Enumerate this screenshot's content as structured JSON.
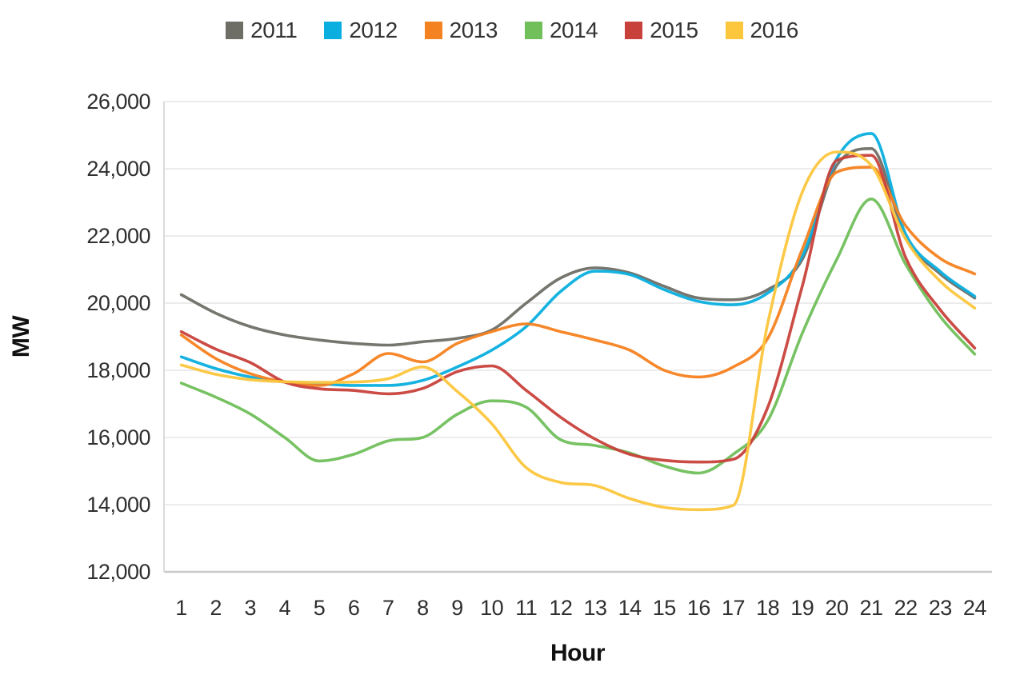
{
  "page": {
    "background": "#ffffff"
  },
  "chart_data": {
    "type": "line",
    "title": "",
    "xlabel": "Hour",
    "ylabel": "MW",
    "x": [
      1,
      2,
      3,
      4,
      5,
      6,
      7,
      8,
      9,
      10,
      11,
      12,
      13,
      14,
      15,
      16,
      17,
      18,
      19,
      20,
      21,
      22,
      23,
      24
    ],
    "ylim": [
      12000,
      26000
    ],
    "y_ticks": [
      12000,
      14000,
      16000,
      18000,
      20000,
      22000,
      24000,
      26000
    ],
    "y_tick_labels": [
      "12,000",
      "14,000",
      "16,000",
      "18,000",
      "20,000",
      "22,000",
      "24,000",
      "26,000"
    ],
    "grid": "horizontal",
    "legend_position": "top",
    "series": [
      {
        "name": "2011",
        "color": "#6f6e66",
        "values": [
          20250,
          19700,
          19300,
          19050,
          18900,
          18800,
          18750,
          18850,
          18950,
          19200,
          20000,
          20750,
          21050,
          20900,
          20500,
          20150,
          20100,
          20400,
          21300,
          24100,
          24600,
          21950,
          20870,
          20150
        ]
      },
      {
        "name": "2012",
        "color": "#0aafdf",
        "values": [
          18400,
          18050,
          17800,
          17650,
          17600,
          17550,
          17550,
          17700,
          18100,
          18600,
          19300,
          20350,
          20950,
          20850,
          20400,
          20050,
          19950,
          20300,
          21400,
          24300,
          25050,
          22050,
          20940,
          20200
        ]
      },
      {
        "name": "2013",
        "color": "#f58220",
        "values": [
          19050,
          18350,
          17900,
          17650,
          17550,
          17900,
          18500,
          18250,
          18800,
          19150,
          19380,
          19150,
          18900,
          18600,
          18000,
          17800,
          18100,
          18950,
          21600,
          23900,
          24050,
          22300,
          21330,
          20870
        ]
      },
      {
        "name": "2014",
        "color": "#70bf5b",
        "values": [
          17620,
          17200,
          16700,
          16000,
          15300,
          15500,
          15900,
          16000,
          16690,
          17090,
          16900,
          15930,
          15760,
          15540,
          15150,
          14940,
          15500,
          16500,
          19100,
          21300,
          23100,
          21150,
          19600,
          18480
        ]
      },
      {
        "name": "2015",
        "color": "#c8413b",
        "values": [
          19150,
          18630,
          18230,
          17650,
          17450,
          17400,
          17300,
          17460,
          17960,
          18130,
          17400,
          16600,
          15950,
          15500,
          15320,
          15270,
          15350,
          16900,
          20500,
          24250,
          24400,
          21350,
          19800,
          18660
        ]
      },
      {
        "name": "2016",
        "color": "#fcc63d",
        "values": [
          18160,
          17880,
          17720,
          17660,
          17640,
          17650,
          17750,
          18100,
          17370,
          16410,
          15100,
          14660,
          14570,
          14180,
          13920,
          13850,
          13980,
          19400,
          23300,
          24500,
          24100,
          21900,
          20650,
          19850
        ]
      }
    ]
  }
}
